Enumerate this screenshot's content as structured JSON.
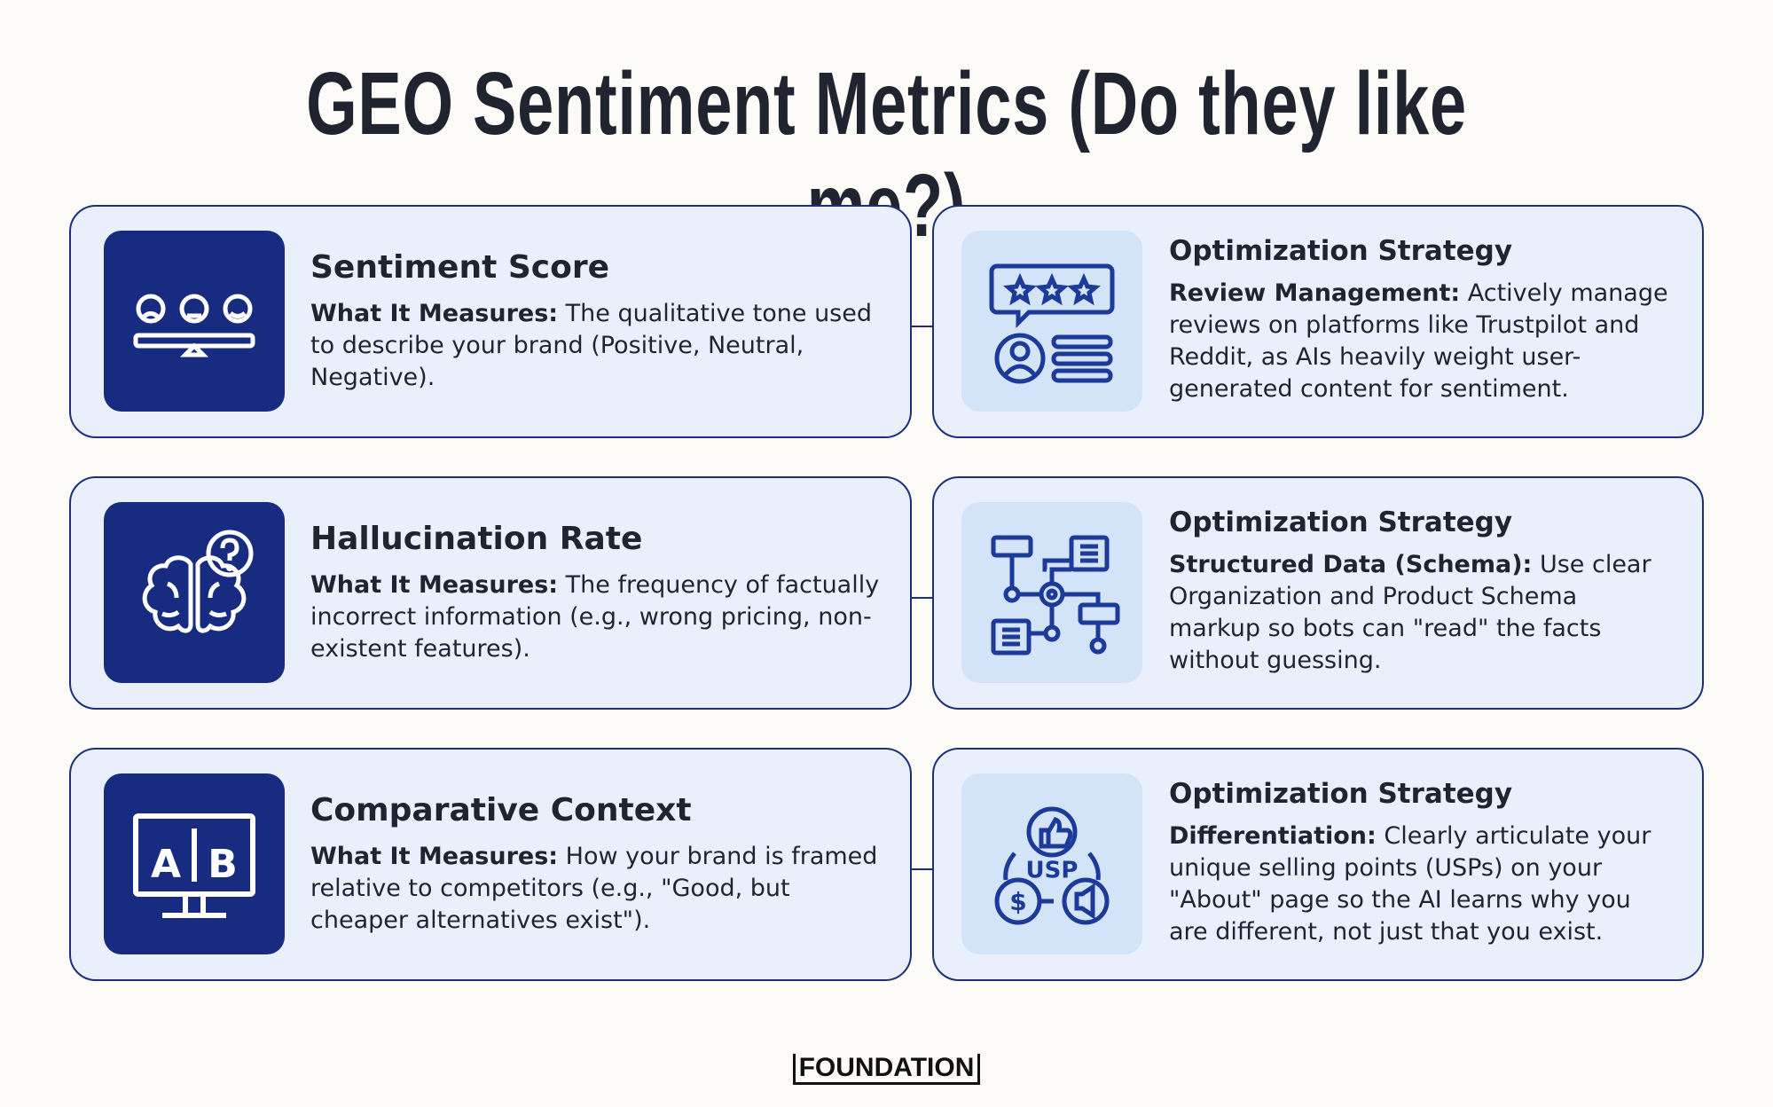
{
  "title": "GEO Sentiment Metrics (Do they like me?)",
  "rows": [
    {
      "metric": {
        "heading": "Sentiment Score",
        "label": "What It Measures:",
        "text": "The qualitative tone used to describe your brand (Positive, Neutral, Negative)."
      },
      "strategy": {
        "heading": "Optimization Strategy",
        "label": "Review Management:",
        "text": "Actively manage reviews on platforms like Trustpilot and Reddit, as AIs heavily weight user-generated content for sentiment."
      }
    },
    {
      "metric": {
        "heading": "Hallucination Rate",
        "label": "What It Measures:",
        "text": "The frequency of factually incorrect information (e.g., wrong pricing, non-existent features)."
      },
      "strategy": {
        "heading": "Optimization Strategy",
        "label": "Structured Data (Schema):",
        "text": "Use clear Organization and Product Schema markup so bots can \"read\" the facts without guessing."
      }
    },
    {
      "metric": {
        "heading": "Comparative Context",
        "label": "What It Measures:",
        "text": "How your brand is framed relative to competitors (e.g., \"Good, but cheaper alternatives exist\")."
      },
      "strategy": {
        "heading": "Optimization Strategy",
        "label": "Differentiation:",
        "text": "Clearly articulate your unique selling points (USPs) on your \"About\" page so the AI learns why you are different, not just that you exist."
      }
    }
  ],
  "icon_text": {
    "ab_a": "A",
    "ab_b": "B",
    "usp": "USP",
    "dollar": "$"
  },
  "footer": "FOUNDATION"
}
